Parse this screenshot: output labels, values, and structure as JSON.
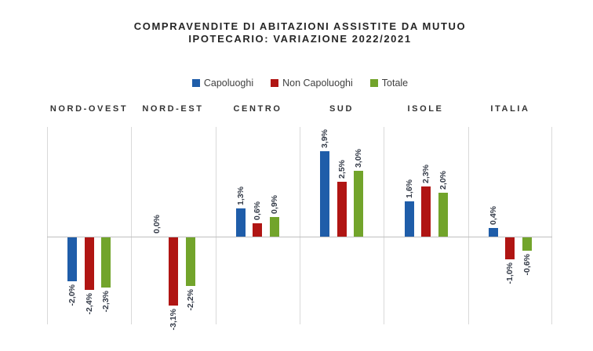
{
  "title": {
    "line1": "COMPRAVENDITE DI ABITAZIONI ASSISTITE DA MUTUO",
    "line2": "IPOTECARIO: VARIAZIONE 2022/2021"
  },
  "legend": {
    "items": [
      {
        "label": "Capoluoghi",
        "color": "#1F5DA9"
      },
      {
        "label": "Non Capoluoghi",
        "color": "#B01513"
      },
      {
        "label": "Totale",
        "color": "#72A42B"
      }
    ]
  },
  "chart_data": {
    "type": "bar",
    "title": "COMPRAVENDITE DI ABITAZIONI ASSISTITE DA MUTUO IPOTECARIO: VARIAZIONE 2022/2021",
    "categories": [
      "NORD-OVEST",
      "NORD-EST",
      "CENTRO",
      "SUD",
      "ISOLE",
      "ITALIA"
    ],
    "series": [
      {
        "name": "Capoluoghi",
        "color": "#1F5DA9",
        "values": [
          -2.0,
          0.0,
          1.3,
          3.9,
          1.6,
          0.4
        ]
      },
      {
        "name": "Non Capoluoghi",
        "color": "#B01513",
        "values": [
          -2.4,
          -3.1,
          0.6,
          2.5,
          2.3,
          -1.0
        ]
      },
      {
        "name": "Totale",
        "color": "#72A42B",
        "values": [
          -2.3,
          -2.2,
          0.9,
          3.0,
          2.0,
          -0.6
        ]
      }
    ],
    "data_labels": [
      "-2,0%",
      "-2,4%",
      "-2,3%",
      "0,0%",
      "-3,1%",
      "-2,2%",
      "1,3%",
      "0,6%",
      "0,9%",
      "3,9%",
      "2,5%",
      "3,0%",
      "1,6%",
      "2,3%",
      "2,0%",
      "0,4%",
      "-1,0%",
      "-0,6%"
    ],
    "ylim": [
      -4,
      5
    ],
    "ylabel": "",
    "xlabel": "",
    "legend_position": "top",
    "gridlines": "vertical category separators only, gray zero baseline",
    "label_style": "rotated 90deg, outside end",
    "colors": {
      "gridline": "#d9d9d9",
      "zero_line": "#bfbfbf",
      "title_text": "#262626",
      "label_text": "#333a47"
    }
  }
}
